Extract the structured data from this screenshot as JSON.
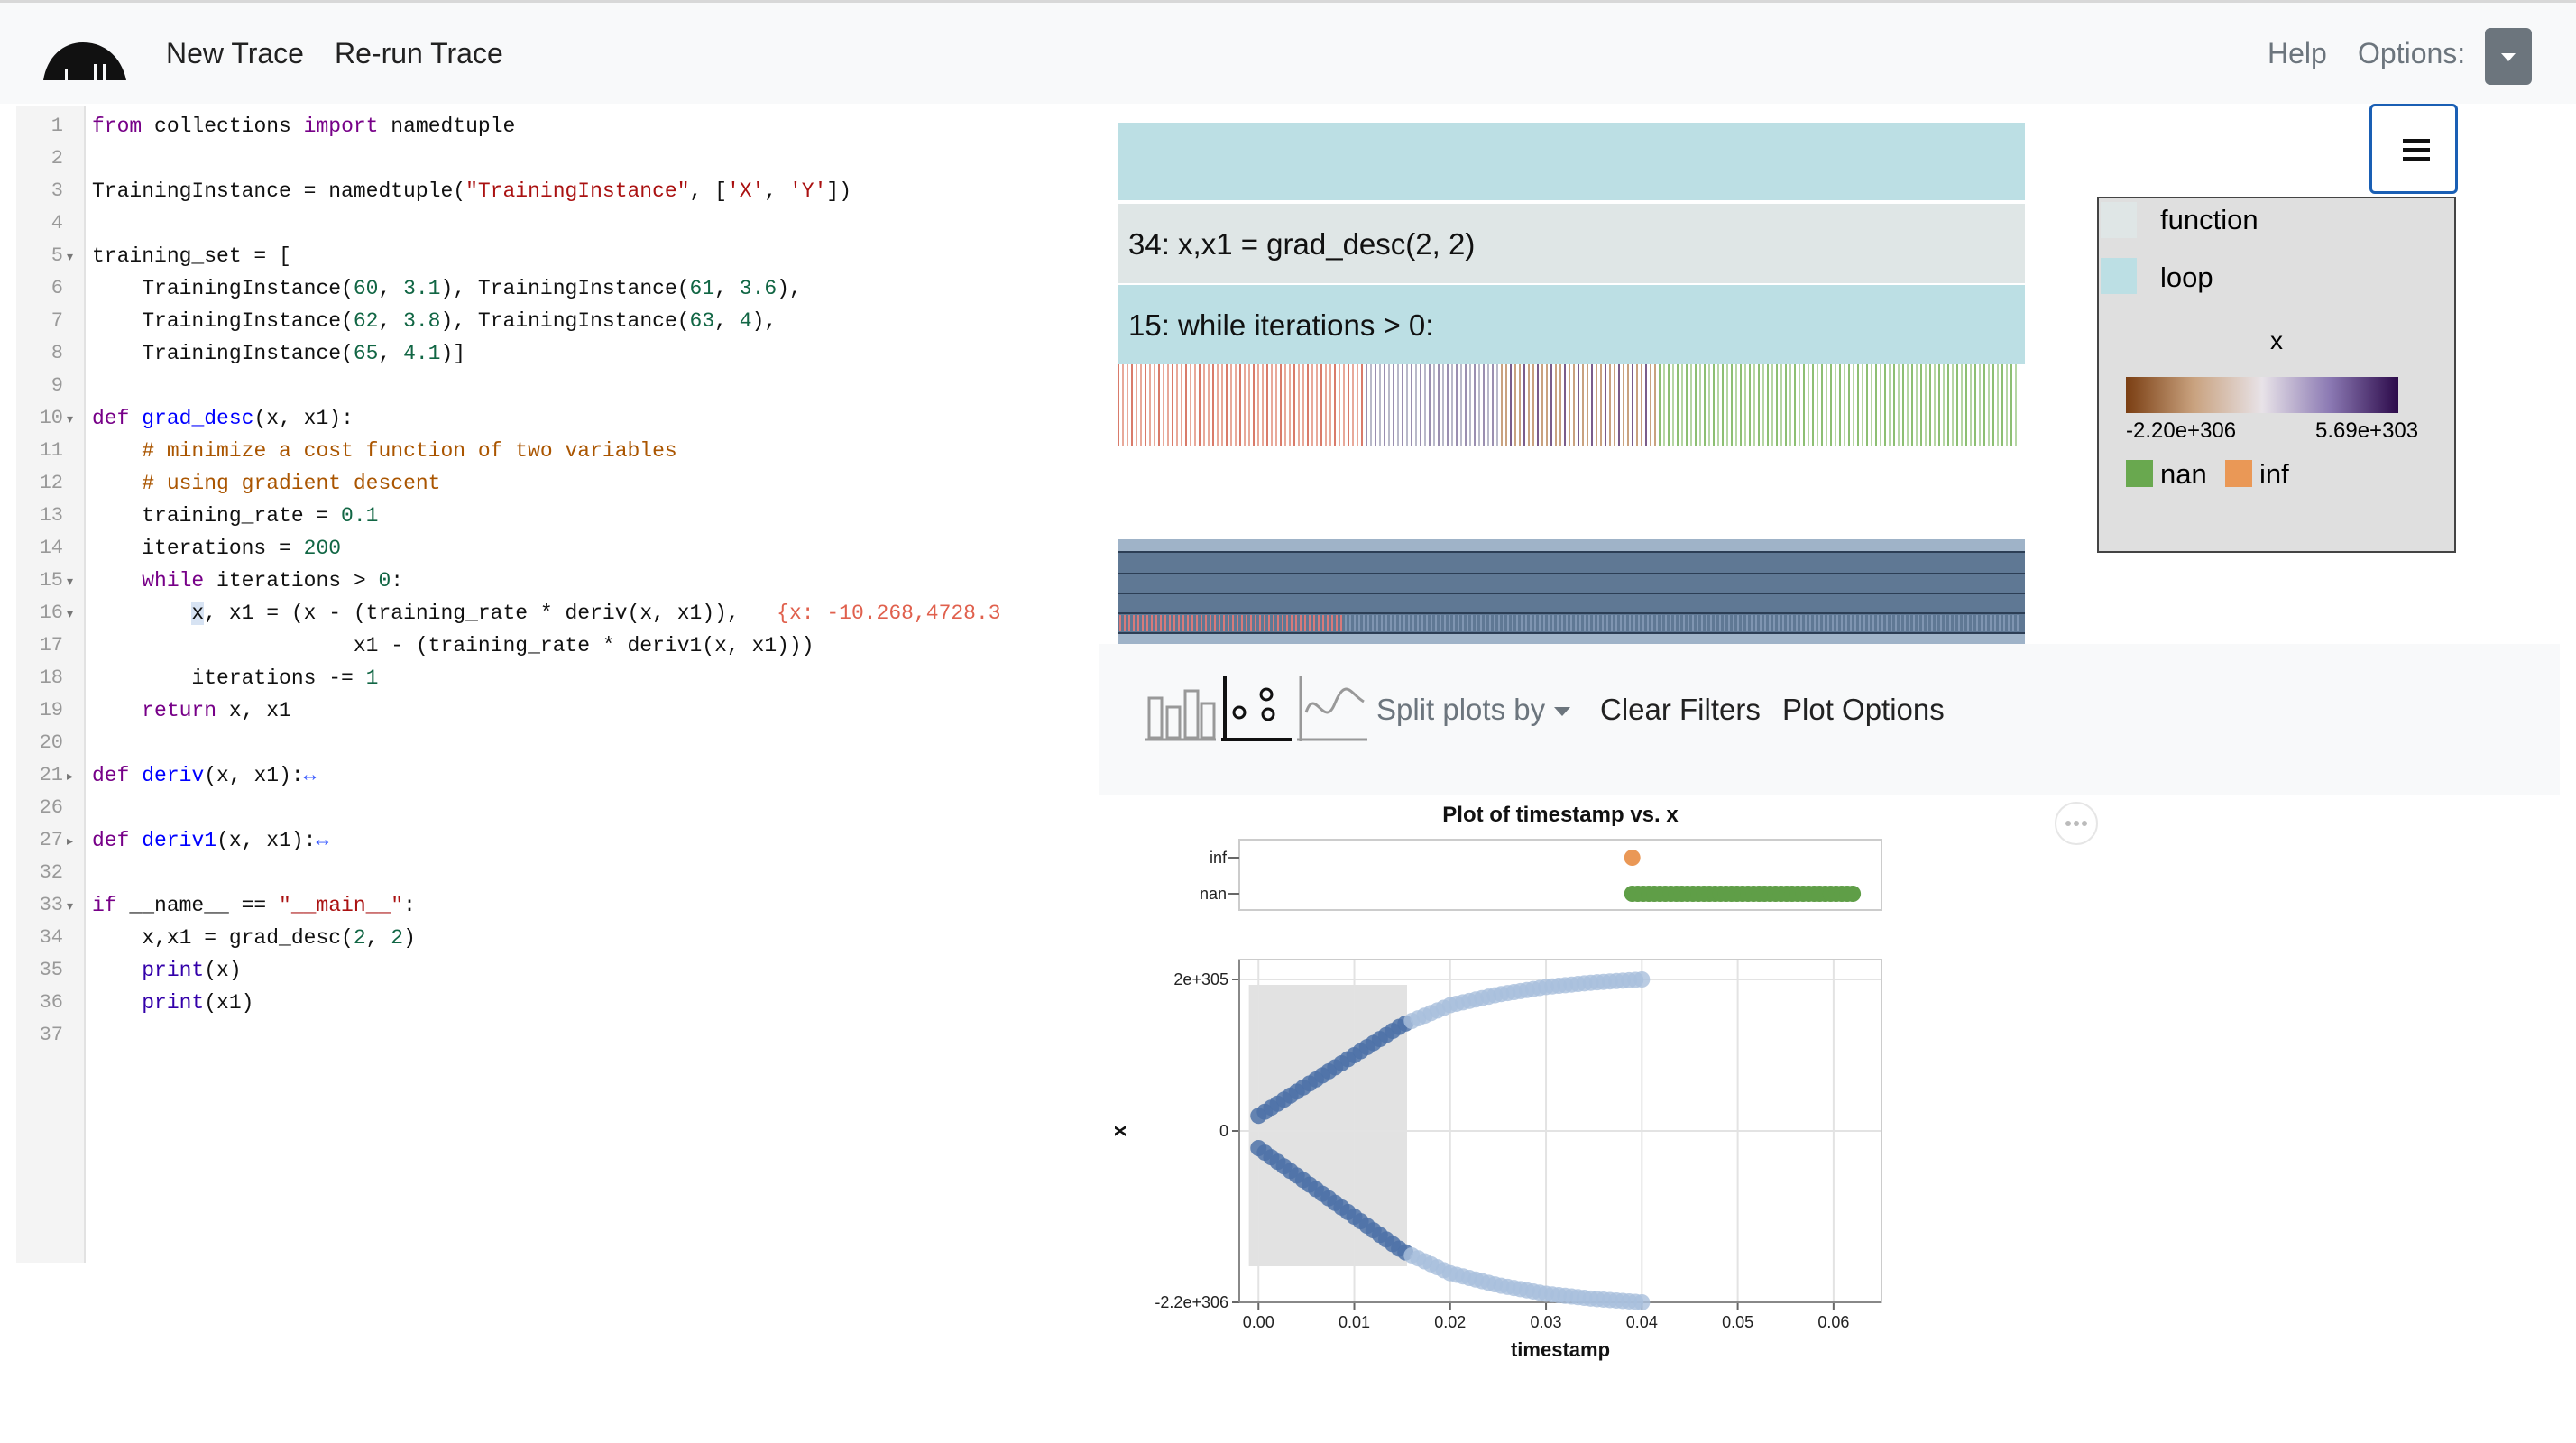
{
  "navbar": {
    "logo": "cloud-logo-icon",
    "new_trace": "New Trace",
    "rerun_trace": "Re-run Trace",
    "help": "Help",
    "options_label": "Options:"
  },
  "code": {
    "line_numbers": [
      "1",
      "2",
      "3",
      "4",
      "5",
      "6",
      "7",
      "8",
      "9",
      "10",
      "11",
      "12",
      "13",
      "14",
      "15",
      "16",
      "17",
      "18",
      "19",
      "20",
      "21",
      "26",
      "27",
      "32",
      "33",
      "34",
      "35",
      "36",
      "37"
    ],
    "folded_marker": "↔",
    "annotation": "{x: -10.268,4728.3"
  },
  "trace_panel": {
    "row_function": "34: x,x1 = grad_desc(2, 2)",
    "row_loop": "15: while iterations > 0:"
  },
  "legend": {
    "function_label": "function",
    "loop_label": "loop",
    "x_title": "x",
    "x_min": "-2.20e+306",
    "x_max": "5.69e+303",
    "nan_label": "nan",
    "inf_label": "inf",
    "colors": {
      "function": "#dfe6e6",
      "loop": "#bcdfe4",
      "nan": "#69a84f",
      "inf": "#ea9856"
    }
  },
  "toolbar": {
    "split_plots": "Split plots by",
    "clear_filters": "Clear Filters",
    "plot_options": "Plot Options",
    "icons": [
      "bar-chart-icon",
      "scatter-plot-icon",
      "line-chart-icon"
    ]
  },
  "chart_data": {
    "type": "scatter",
    "title": "Plot of timestamp vs. x",
    "xlabel": "timestamp",
    "ylabel": "x",
    "xlim": [
      -0.002,
      0.065
    ],
    "ylim": [
      -2.2e+306,
      2e+306
    ],
    "x_ticks": [
      "0.00",
      "0.01",
      "0.02",
      "0.03",
      "0.04",
      "0.05",
      "0.06"
    ],
    "y_ticks": [
      "2e+305",
      "0",
      "-2.2e+306"
    ],
    "special_rows": [
      "inf",
      "nan"
    ],
    "grid": true,
    "series": [
      {
        "name": "",
        "x": [
          0.0,
          0.005,
          0.01,
          0.015,
          0.02,
          0.025,
          0.03,
          0.035,
          0.04
        ],
        "y": [
          0.1,
          0.3,
          0.5,
          0.7,
          0.83,
          0.9,
          0.95,
          0.98,
          1.0
        ]
      },
      {
        "name": "",
        "x": [
          0.0,
          0.005,
          0.01,
          0.015,
          0.02,
          0.025,
          0.03,
          0.035,
          0.04
        ],
        "y": [
          -0.1,
          -0.3,
          -0.5,
          -0.7,
          -0.83,
          -0.9,
          -0.95,
          -0.98,
          -1.0
        ]
      },
      {
        "name": "inf",
        "x": [
          0.039
        ],
        "y": [
          "inf"
        ]
      },
      {
        "name": "nan",
        "x": [
          0.039,
          0.062
        ],
        "y": [
          "nan",
          "nan"
        ]
      }
    ],
    "brush_selection": {
      "x": [
        -0.001,
        0.0155
      ]
    }
  }
}
